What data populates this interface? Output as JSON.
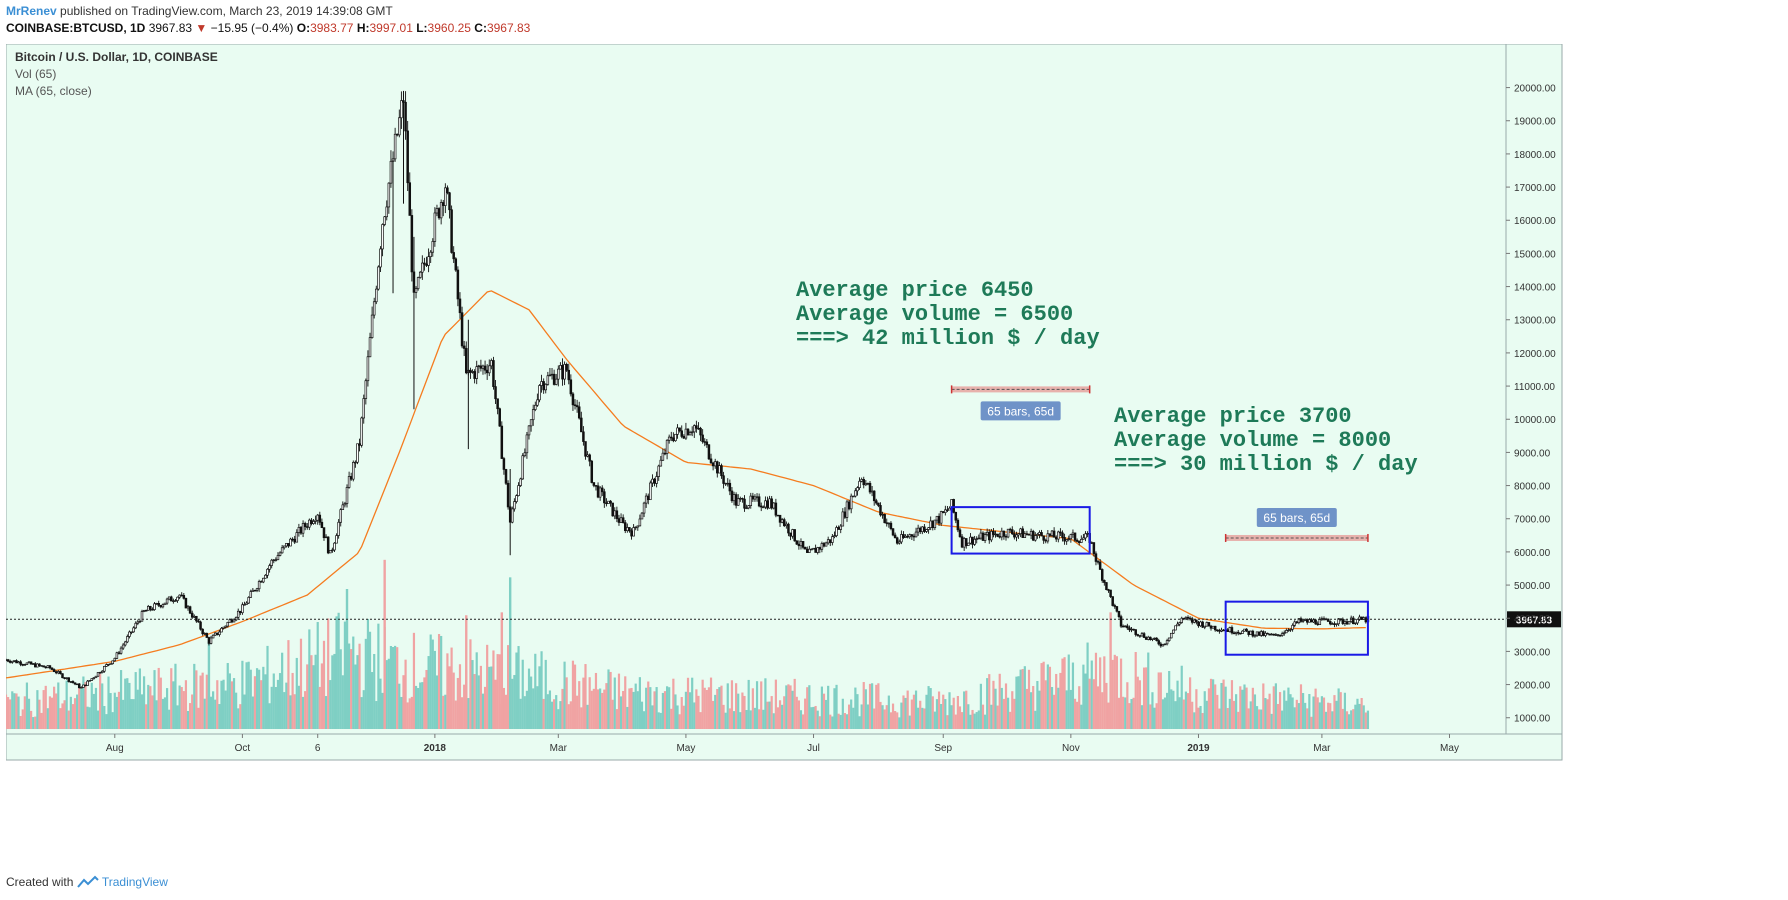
{
  "header": {
    "author": "MrRenev",
    "published_text": "published on TradingView.com, March 23, 2019 14:39:08 GMT",
    "symbol": "COINBASE:BTCUSD, 1D",
    "last": "3967.83",
    "change": "−15.95 (−0.4%)",
    "o_label": "O:",
    "o_value": "3983.77",
    "h_label": "H:",
    "h_value": "3997.01",
    "l_label": "L:",
    "l_value": "3960.25",
    "c_label": "C:",
    "c_value": "3967.83"
  },
  "legend": {
    "title": "Bitcoin / U.S. Dollar, 1D, COINBASE",
    "vol": "Vol (65)",
    "ma": "MA (65, close)"
  },
  "footer": {
    "created_with": "Created with",
    "brand": "TradingView"
  },
  "colors": {
    "background": "#e9fcf2",
    "candle": "#111111",
    "ma_line": "#f57c1f",
    "vol_up": "#7fcfc4",
    "vol_down": "#f0a3a3",
    "annotation_text": "#1e7a58",
    "box": "#1a1ae6",
    "range_line": "#e57373",
    "range_badge": "#6f93c8"
  },
  "chart_data": {
    "type": "candlestick",
    "title": "Bitcoin / U.S. Dollar, 1D, COINBASE",
    "ylim": [
      600,
      20500
    ],
    "y_ticks": [
      "1000.00",
      "2000.00",
      "3000.00",
      "4000.00",
      "5000.00",
      "6000.00",
      "7000.00",
      "8000.00",
      "9000.00",
      "10000.00",
      "11000.00",
      "12000.00",
      "13000.00",
      "14000.00",
      "15000.00",
      "16000.00",
      "17000.00",
      "18000.00",
      "19000.00",
      "20000.00"
    ],
    "x_ticks": [
      {
        "label": "Aug",
        "date": "2017-08-01",
        "bold": false
      },
      {
        "label": "Oct",
        "date": "2017-10-01",
        "bold": false
      },
      {
        "label": "6",
        "date": "2017-11-06",
        "bold": false
      },
      {
        "label": "2018",
        "date": "2018-01-01",
        "bold": true
      },
      {
        "label": "Mar",
        "date": "2018-03-01",
        "bold": false
      },
      {
        "label": "May",
        "date": "2018-05-01",
        "bold": false
      },
      {
        "label": "Jul",
        "date": "2018-07-01",
        "bold": false
      },
      {
        "label": "Sep",
        "date": "2018-09-01",
        "bold": false
      },
      {
        "label": "Nov",
        "date": "2018-11-01",
        "bold": false
      },
      {
        "label": "2019",
        "date": "2019-01-01",
        "bold": true
      },
      {
        "label": "Mar",
        "date": "2019-03-01",
        "bold": false
      },
      {
        "label": "May",
        "date": "2019-05-01",
        "bold": false
      }
    ],
    "x_range": [
      "2017-06-10",
      "2019-05-28"
    ],
    "price_series": {
      "name": "BTCUSD close",
      "points": [
        [
          "2017-06-10",
          2750
        ],
        [
          "2017-07-01",
          2500
        ],
        [
          "2017-07-16",
          1900
        ],
        [
          "2017-08-01",
          2800
        ],
        [
          "2017-08-15",
          4200
        ],
        [
          "2017-09-01",
          4700
        ],
        [
          "2017-09-15",
          3300
        ],
        [
          "2017-10-01",
          4300
        ],
        [
          "2017-10-15",
          5700
        ],
        [
          "2017-11-06",
          7200
        ],
        [
          "2017-11-12",
          5900
        ],
        [
          "2017-11-26",
          9300
        ],
        [
          "2017-12-07",
          16000
        ],
        [
          "2017-12-17",
          19700
        ],
        [
          "2017-12-22",
          13500
        ],
        [
          "2018-01-06",
          17100
        ],
        [
          "2018-01-16",
          11300
        ],
        [
          "2018-01-28",
          11700
        ],
        [
          "2018-02-06",
          6900
        ],
        [
          "2018-02-20",
          11100
        ],
        [
          "2018-03-05",
          11500
        ],
        [
          "2018-03-18",
          8000
        ],
        [
          "2018-04-01",
          6800
        ],
        [
          "2018-04-06",
          6600
        ],
        [
          "2018-04-24",
          9500
        ],
        [
          "2018-05-05",
          9800
        ],
        [
          "2018-05-25",
          7500
        ],
        [
          "2018-06-10",
          7500
        ],
        [
          "2018-06-28",
          5900
        ],
        [
          "2018-07-10",
          6400
        ],
        [
          "2018-07-24",
          8300
        ],
        [
          "2018-08-10",
          6300
        ],
        [
          "2018-08-30",
          7000
        ],
        [
          "2018-09-05",
          7400
        ],
        [
          "2018-09-10",
          6300
        ],
        [
          "2018-10-01",
          6600
        ],
        [
          "2018-10-15",
          6500
        ],
        [
          "2018-11-10",
          6400
        ],
        [
          "2018-11-14",
          5600
        ],
        [
          "2018-11-25",
          3800
        ],
        [
          "2018-12-15",
          3200
        ],
        [
          "2018-12-24",
          4000
        ],
        [
          "2019-01-10",
          3700
        ],
        [
          "2019-02-07",
          3450
        ],
        [
          "2019-02-18",
          3900
        ],
        [
          "2019-03-10",
          3900
        ],
        [
          "2019-03-23",
          3967
        ]
      ]
    },
    "ma_series": {
      "name": "MA (65, close)",
      "points": [
        [
          "2017-06-10",
          2200
        ],
        [
          "2017-07-01",
          2400
        ],
        [
          "2017-08-01",
          2700
        ],
        [
          "2017-09-01",
          3200
        ],
        [
          "2017-10-01",
          3900
        ],
        [
          "2017-11-01",
          4700
        ],
        [
          "2017-11-26",
          6000
        ],
        [
          "2017-12-15",
          9000
        ],
        [
          "2018-01-05",
          12500
        ],
        [
          "2018-01-27",
          13900
        ],
        [
          "2018-02-15",
          13300
        ],
        [
          "2018-03-05",
          11800
        ],
        [
          "2018-04-01",
          9800
        ],
        [
          "2018-05-01",
          8700
        ],
        [
          "2018-06-01",
          8500
        ],
        [
          "2018-07-01",
          8000
        ],
        [
          "2018-08-01",
          7200
        ],
        [
          "2018-09-01",
          6800
        ],
        [
          "2018-10-01",
          6600
        ],
        [
          "2018-11-01",
          6400
        ],
        [
          "2018-12-01",
          5000
        ],
        [
          "2019-01-01",
          4000
        ],
        [
          "2019-02-01",
          3700
        ],
        [
          "2019-03-01",
          3680
        ],
        [
          "2019-03-23",
          3720
        ]
      ]
    },
    "volume_envelope": [
      [
        "2017-06-10",
        1500
      ],
      [
        "2017-08-01",
        2000
      ],
      [
        "2017-10-01",
        2500
      ],
      [
        "2017-11-20",
        4200
      ],
      [
        "2017-12-15",
        3500
      ],
      [
        "2018-02-05",
        3000
      ],
      [
        "2018-04-01",
        2000
      ],
      [
        "2018-06-01",
        1800
      ],
      [
        "2018-09-01",
        1500
      ],
      [
        "2018-11-20",
        3200
      ],
      [
        "2019-01-01",
        2000
      ],
      [
        "2019-03-23",
        1300
      ]
    ],
    "volume_spikes": [
      {
        "date": "2017-11-20",
        "value": 4800,
        "dir": "up"
      },
      {
        "date": "2017-12-08",
        "value": 5800,
        "dir": "down"
      },
      {
        "date": "2018-02-06",
        "value": 5200,
        "dir": "up"
      },
      {
        "date": "2018-02-02",
        "value": 4000,
        "dir": "down"
      },
      {
        "date": "2018-01-16",
        "value": 3900,
        "dir": "down"
      },
      {
        "date": "2018-11-20",
        "value": 4000,
        "dir": "down"
      },
      {
        "date": "2017-09-15",
        "value": 3000,
        "dir": "up"
      }
    ],
    "last_price_label": "3967.83",
    "last_price": 3967.83,
    "annotations": [
      {
        "lines": [
          "Average price 6450",
          "Average volume = 6500",
          "===> 42 million $ / day"
        ]
      },
      {
        "lines": [
          "Average price 3700",
          "Average volume = 8000",
          "===> 30 million $ / day"
        ]
      }
    ],
    "boxes": [
      {
        "from": "2018-09-05",
        "to": "2018-11-10",
        "low": 5950,
        "high": 7350
      },
      {
        "from": "2019-01-14",
        "to": "2019-03-23",
        "low": 2900,
        "high": 4500
      }
    ],
    "ranges": [
      {
        "label": "65 bars, 65d",
        "from": "2018-09-05",
        "to": "2018-11-10",
        "price": 10900
      },
      {
        "label": "65 bars, 65d",
        "from": "2019-01-14",
        "to": "2019-03-23",
        "price": 6420
      }
    ]
  }
}
